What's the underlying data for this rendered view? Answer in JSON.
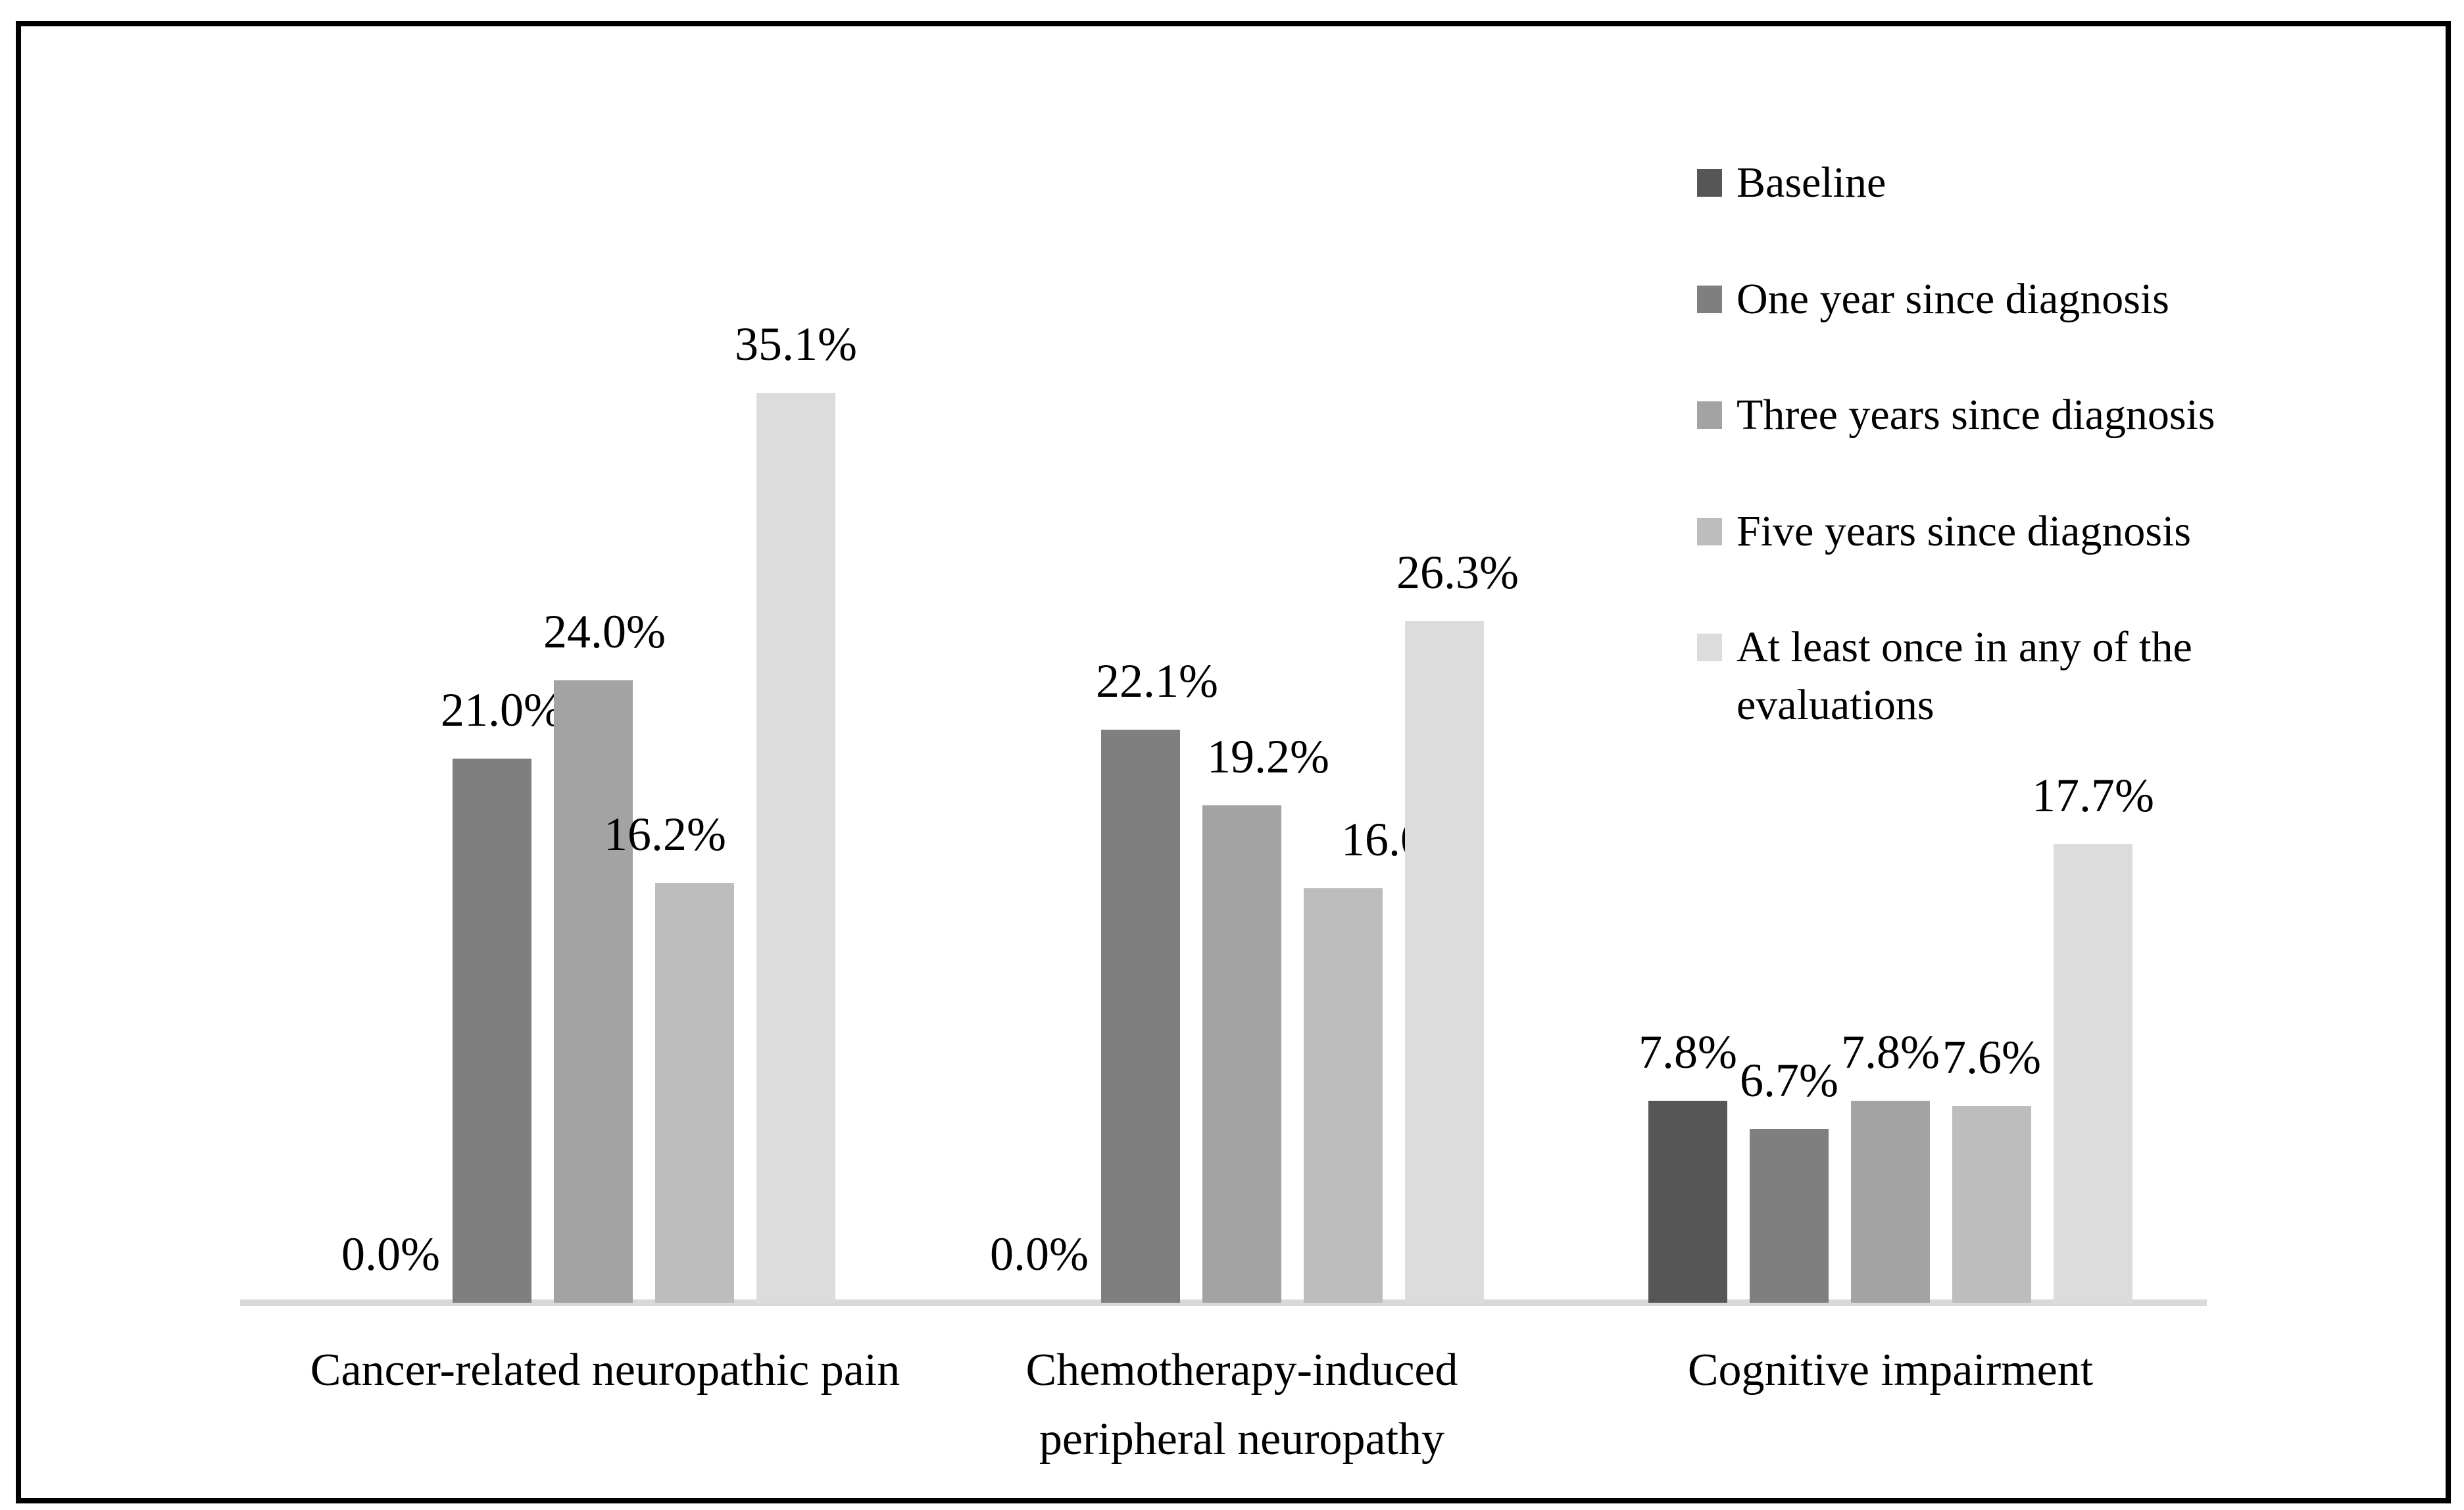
{
  "figure": {
    "background_color": "#ffffff",
    "border_color": "#000000"
  },
  "chart_data": {
    "type": "bar",
    "title": "",
    "xlabel": "",
    "ylabel": "",
    "unit": "percent",
    "ylim": [
      0,
      40
    ],
    "grid": false,
    "axis_color": "#d9d9d9",
    "text_color": "#000000",
    "legend_position": "right",
    "categories": [
      "Cancer-related neuropathic pain",
      "Chemotherapy-induced peripheral neuropathy",
      "Cognitive impairment"
    ],
    "category_labels_lines": [
      [
        "Cancer-related neuropathic pain"
      ],
      [
        "Chemotherapy-induced",
        "peripheral neuropathy"
      ],
      [
        "Cognitive impairment"
      ]
    ],
    "series": [
      {
        "name": "Baseline",
        "color": "#565656",
        "values": [
          0.0,
          0.0,
          7.8
        ]
      },
      {
        "name": "One year since diagnosis",
        "color": "#7f7f7f",
        "values": [
          21.0,
          22.1,
          6.7
        ]
      },
      {
        "name": "Three years since diagnosis",
        "color": "#a3a3a3",
        "values": [
          24.0,
          19.2,
          7.8
        ]
      },
      {
        "name": "Five years since diagnosis",
        "color": "#bdbdbd",
        "values": [
          16.2,
          16.0,
          7.6
        ]
      },
      {
        "name": "At least once in any of the evaluations",
        "color": "#dcdcdc",
        "values": [
          35.1,
          26.3,
          17.7
        ]
      }
    ],
    "value_labels": [
      [
        "0.0%",
        "21.0%",
        "24.0%",
        "16.2%",
        "35.1%"
      ],
      [
        "0.0%",
        "22.1%",
        "19.2%",
        "16.0%",
        "26.3%"
      ],
      [
        "7.8%",
        "6.7%",
        "7.8%",
        "7.6%",
        "17.7%"
      ]
    ],
    "legend_lines": [
      [
        "Baseline"
      ],
      [
        "One year since diagnosis"
      ],
      [
        "Three years since diagnosis"
      ],
      [
        "Five years since diagnosis"
      ],
      [
        "At least once in any of the",
        "evaluations"
      ]
    ]
  }
}
